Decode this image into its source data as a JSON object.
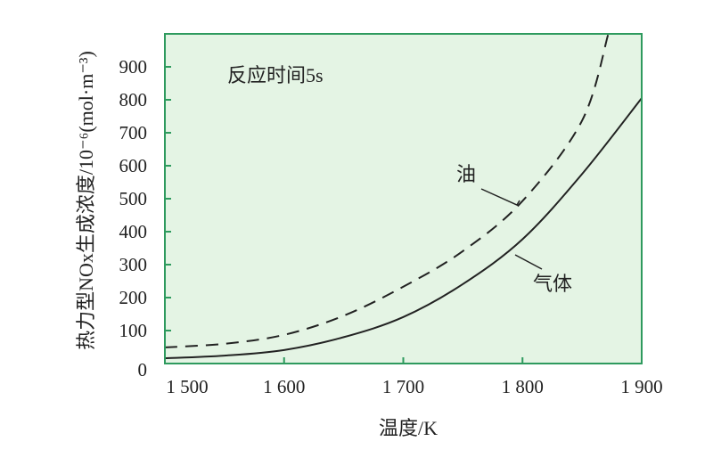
{
  "chart_data": {
    "type": "line",
    "title": "",
    "annotation": "反应时间5s",
    "xlabel": "温度/K",
    "ylabel": "热力型NOx生成浓度/10⁻⁶(mol·m⁻³)",
    "xlim": [
      1500,
      1900
    ],
    "ylim": [
      0,
      1000
    ],
    "xticks": [
      1500,
      1600,
      1700,
      1800,
      1900
    ],
    "xtick_labels": [
      "1 500",
      "1 600",
      "1 700",
      "1 800",
      "1 900"
    ],
    "yticks": [
      0,
      100,
      200,
      300,
      400,
      500,
      600,
      700,
      800,
      900
    ],
    "ytick_labels": [
      "0",
      "100",
      "200",
      "300",
      "400",
      "500",
      "600",
      "700",
      "800",
      "900"
    ],
    "grid": false,
    "background_color": "#e4f4e4",
    "frame_color": "#2e9a5e",
    "series": [
      {
        "name": "油",
        "style": "dashed",
        "color": "#222222",
        "x": [
          1500,
          1550,
          1600,
          1650,
          1700,
          1750,
          1800,
          1850,
          1872
        ],
        "y": [
          49,
          60,
          87,
          145,
          233,
          341,
          493,
          737,
          1000
        ]
      },
      {
        "name": "气体",
        "style": "solid",
        "color": "#222222",
        "x": [
          1500,
          1550,
          1600,
          1650,
          1700,
          1750,
          1800,
          1850,
          1900
        ],
        "y": [
          16,
          24,
          41,
          80,
          141,
          241,
          377,
          575,
          805
        ]
      }
    ]
  }
}
